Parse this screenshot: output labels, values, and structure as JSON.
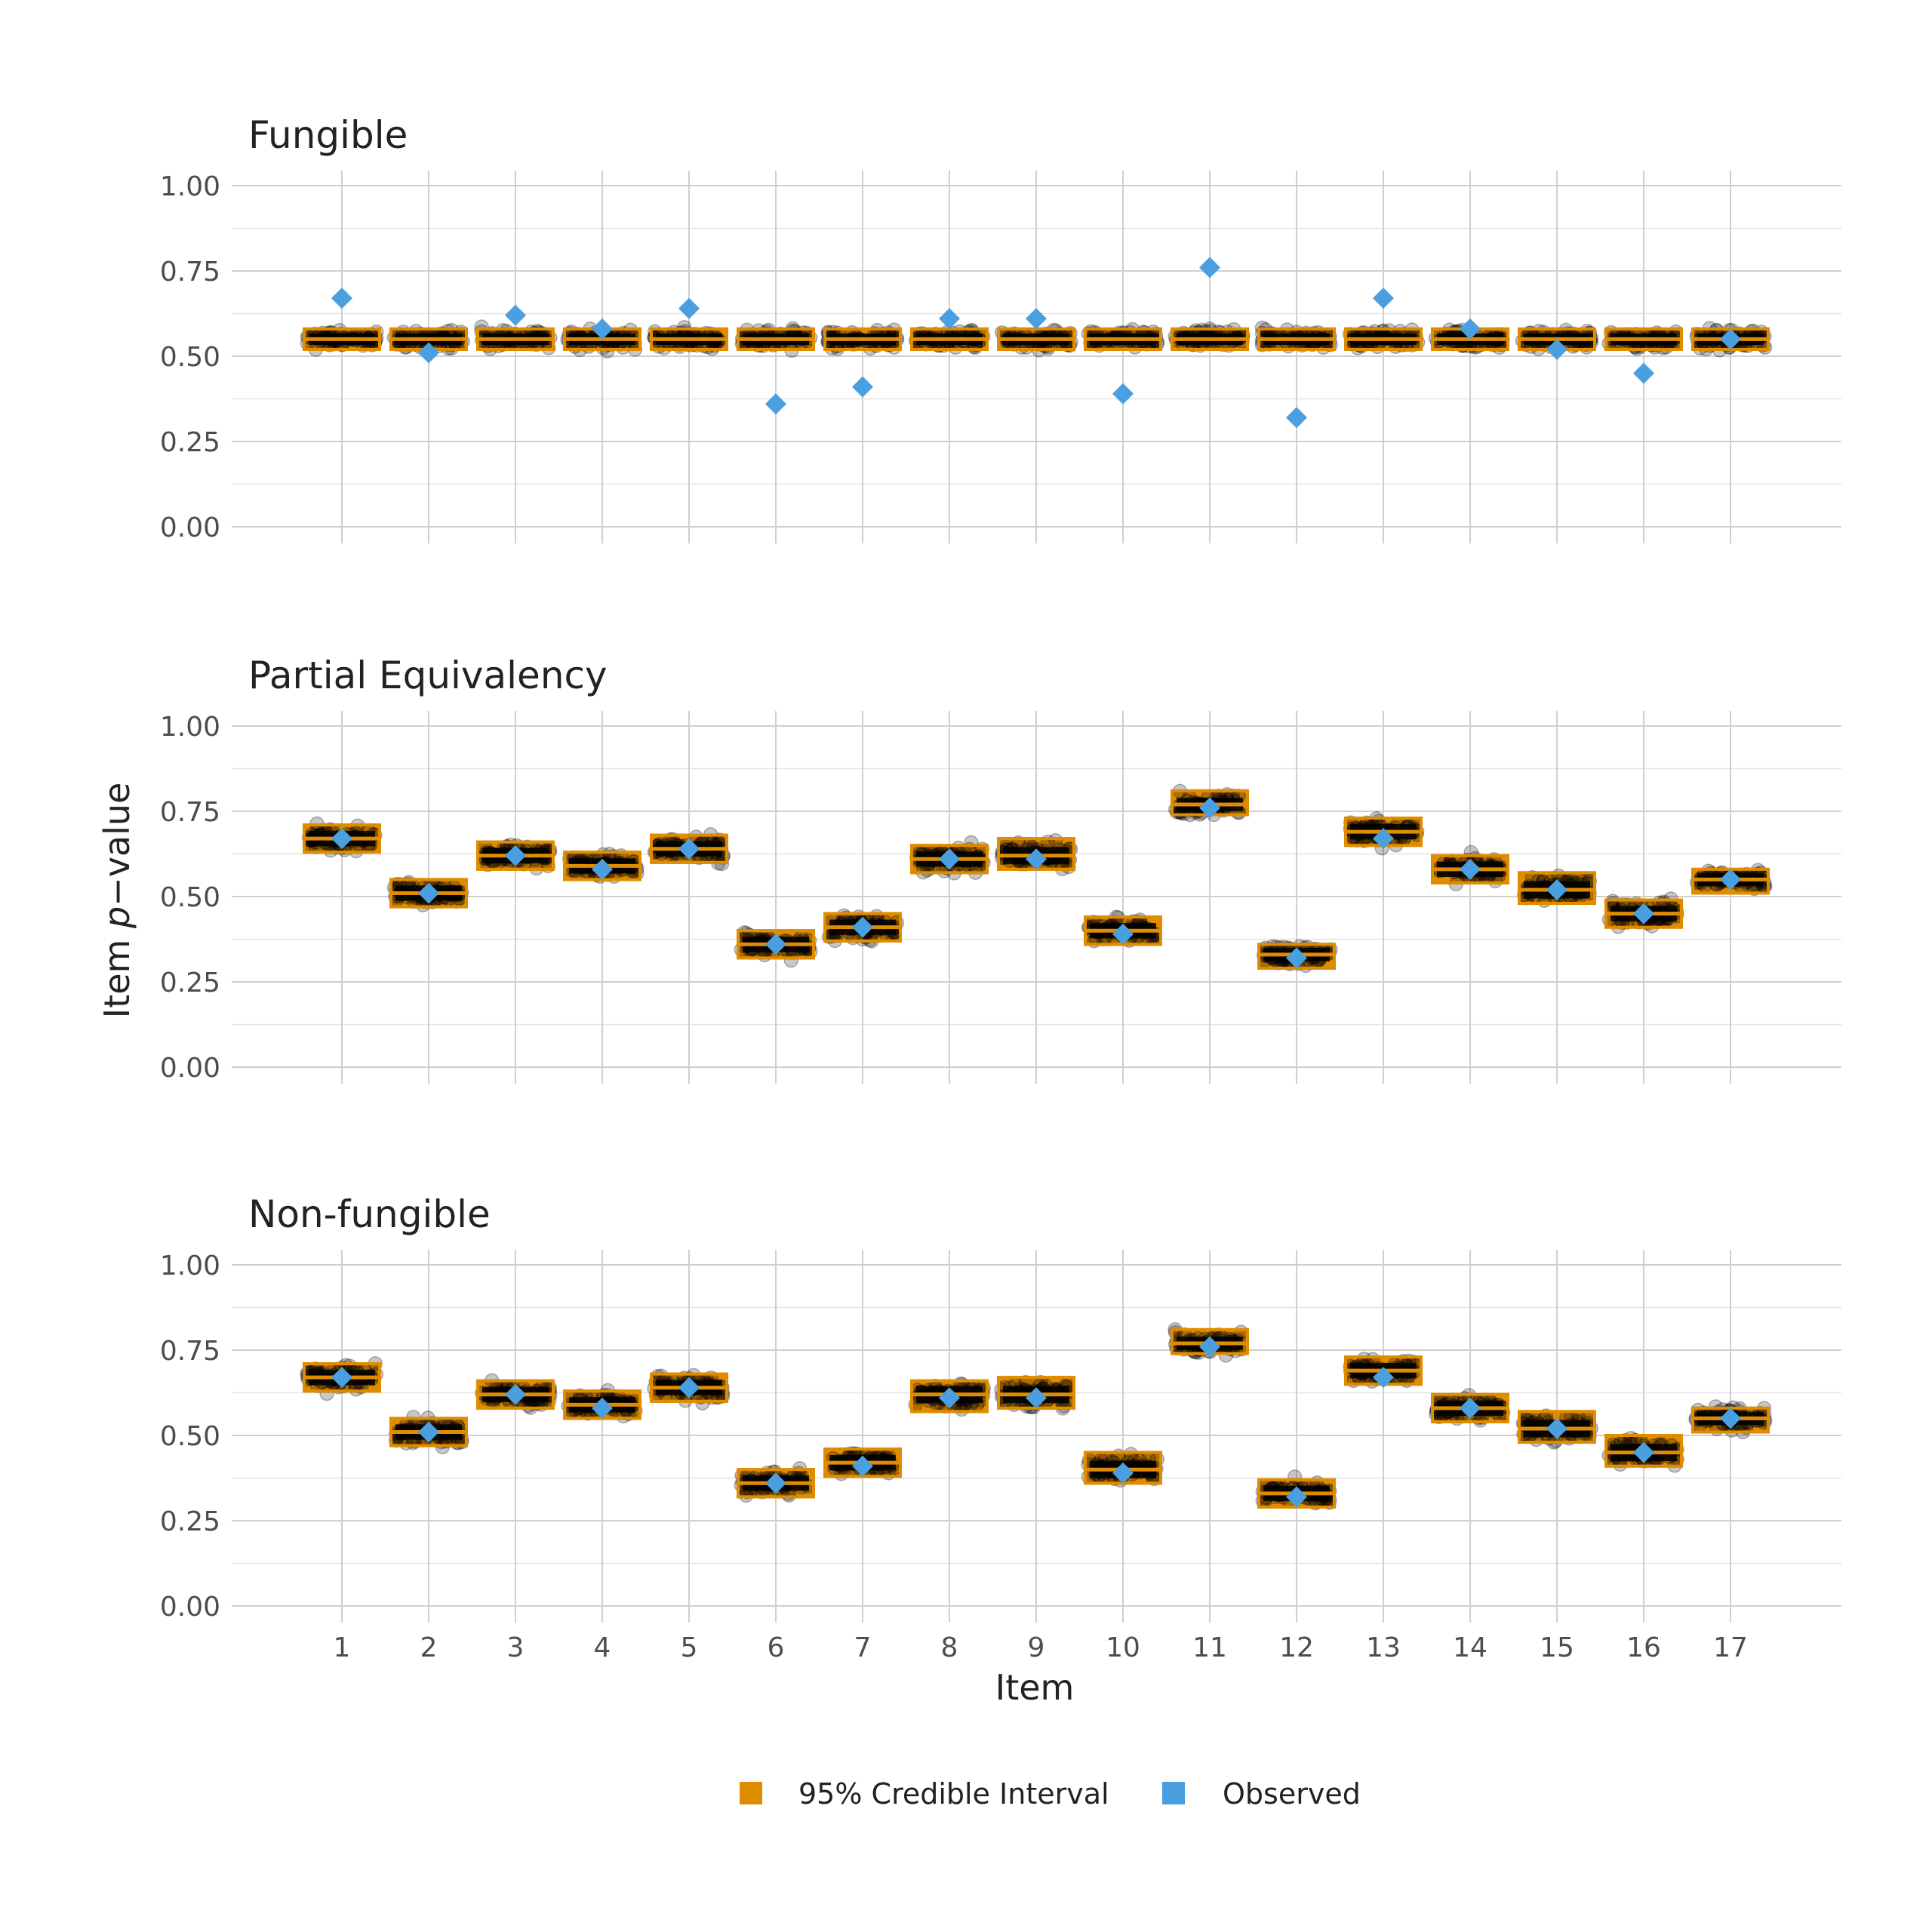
{
  "chart_data": {
    "type": "scatter",
    "xlabel": "Item",
    "ylabel_prefix": "Item ",
    "ylabel_italic": "p",
    "ylabel_suffix": "−value",
    "categories": [
      "1",
      "2",
      "3",
      "4",
      "5",
      "6",
      "7",
      "8",
      "9",
      "10",
      "11",
      "12",
      "13",
      "14",
      "15",
      "16",
      "17"
    ],
    "ylim": [
      0,
      1
    ],
    "yticks": [
      "0.00",
      "0.25",
      "0.50",
      "0.75",
      "1.00"
    ],
    "grid": true,
    "legend": {
      "position": "bottom",
      "items": [
        {
          "label": "95% Credible Interval",
          "color": "#E08C00"
        },
        {
          "label": "Observed",
          "color": "#4A9FE0"
        }
      ]
    },
    "colors": {
      "interval": "#E08C00",
      "observed": "#4A9FE0",
      "draws": "#000000"
    },
    "panels": [
      {
        "title": "Fungible",
        "observed": [
          0.67,
          0.51,
          0.62,
          0.58,
          0.64,
          0.36,
          0.41,
          0.61,
          0.61,
          0.39,
          0.76,
          0.32,
          0.67,
          0.58,
          0.52,
          0.45,
          0.55
        ],
        "posterior_mean": [
          0.55,
          0.55,
          0.55,
          0.55,
          0.55,
          0.55,
          0.55,
          0.55,
          0.55,
          0.55,
          0.55,
          0.55,
          0.55,
          0.55,
          0.55,
          0.55,
          0.55
        ],
        "interval_low": [
          0.52,
          0.52,
          0.52,
          0.52,
          0.52,
          0.52,
          0.52,
          0.52,
          0.52,
          0.52,
          0.52,
          0.52,
          0.52,
          0.52,
          0.52,
          0.52,
          0.52
        ],
        "interval_high": [
          0.58,
          0.58,
          0.58,
          0.58,
          0.58,
          0.58,
          0.58,
          0.58,
          0.58,
          0.58,
          0.58,
          0.58,
          0.58,
          0.58,
          0.58,
          0.58,
          0.58
        ]
      },
      {
        "title": "Partial Equivalency",
        "observed": [
          0.67,
          0.51,
          0.62,
          0.58,
          0.64,
          0.36,
          0.41,
          0.61,
          0.61,
          0.39,
          0.76,
          0.32,
          0.67,
          0.58,
          0.52,
          0.45,
          0.55
        ],
        "posterior_mean": [
          0.67,
          0.51,
          0.62,
          0.59,
          0.64,
          0.36,
          0.41,
          0.61,
          0.62,
          0.4,
          0.77,
          0.33,
          0.69,
          0.58,
          0.52,
          0.45,
          0.55
        ],
        "interval_low": [
          0.63,
          0.47,
          0.58,
          0.55,
          0.6,
          0.32,
          0.37,
          0.57,
          0.58,
          0.36,
          0.74,
          0.29,
          0.65,
          0.54,
          0.48,
          0.41,
          0.51
        ],
        "interval_high": [
          0.71,
          0.55,
          0.66,
          0.63,
          0.68,
          0.4,
          0.45,
          0.65,
          0.67,
          0.44,
          0.81,
          0.36,
          0.73,
          0.62,
          0.57,
          0.49,
          0.58
        ]
      },
      {
        "title": "Non-fungible",
        "observed": [
          0.67,
          0.51,
          0.62,
          0.58,
          0.64,
          0.36,
          0.41,
          0.61,
          0.61,
          0.39,
          0.76,
          0.32,
          0.67,
          0.58,
          0.52,
          0.45,
          0.55
        ],
        "posterior_mean": [
          0.67,
          0.51,
          0.62,
          0.59,
          0.64,
          0.36,
          0.42,
          0.62,
          0.62,
          0.4,
          0.77,
          0.33,
          0.69,
          0.58,
          0.52,
          0.45,
          0.55
        ],
        "interval_low": [
          0.63,
          0.47,
          0.58,
          0.55,
          0.6,
          0.32,
          0.38,
          0.57,
          0.58,
          0.36,
          0.74,
          0.29,
          0.65,
          0.54,
          0.48,
          0.41,
          0.51
        ],
        "interval_high": [
          0.71,
          0.55,
          0.66,
          0.63,
          0.68,
          0.4,
          0.46,
          0.66,
          0.67,
          0.45,
          0.81,
          0.37,
          0.73,
          0.62,
          0.57,
          0.5,
          0.58
        ]
      }
    ]
  }
}
